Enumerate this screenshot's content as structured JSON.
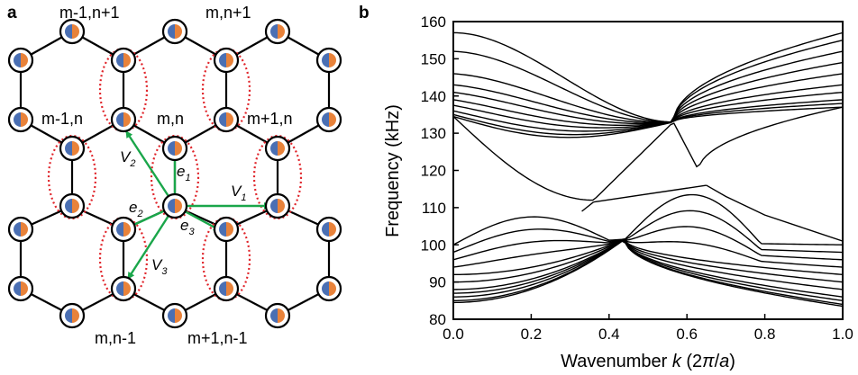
{
  "panel_a": {
    "label": "a",
    "site_labels": {
      "top_left": "m-1,n+1",
      "top_right": "m,n+1",
      "mid_left": "m-1,n",
      "mid_center": "m,n",
      "mid_right": "m+1,n",
      "bottom_left": "m,n-1",
      "bottom_right": "m+1,n-1"
    },
    "vectors": {
      "v1": {
        "base": "V",
        "sub": "1"
      },
      "v2": {
        "base": "V",
        "sub": "2"
      },
      "v3": {
        "base": "V",
        "sub": "3"
      },
      "e1": {
        "base": "e",
        "sub": "1"
      },
      "e2": {
        "base": "e",
        "sub": "2"
      },
      "e3": {
        "base": "e",
        "sub": "3"
      }
    },
    "colors": {
      "arrow": "#1aa64a",
      "unit_cell_outline": "#e0242a",
      "node_left": "#4a6fb3",
      "node_right": "#e8823a"
    }
  },
  "panel_b": {
    "label": "b",
    "ylabel": "Frequency (kHz)",
    "xlabel": {
      "pre": "Wavenumber ",
      "k": "k",
      "mid": " (2",
      "pi": "π",
      "slash": "/",
      "a": "a",
      "post": ")"
    }
  },
  "chart_data": {
    "type": "line",
    "title": "",
    "xlabel": "Wavenumber k (2π/a)",
    "ylabel": "Frequency (kHz)",
    "xlim": [
      0.0,
      1.0
    ],
    "ylim": [
      80,
      160
    ],
    "xticks": [
      "0.0",
      "0.2",
      "0.4",
      "0.6",
      "0.8",
      "1.0"
    ],
    "yticks": [
      "80",
      "90",
      "100",
      "110",
      "120",
      "130",
      "140",
      "150",
      "160"
    ],
    "grid": false,
    "upper_band_crossing": {
      "k": 0.565,
      "f": 133.0
    },
    "lower_band_crossing": {
      "k": 0.44,
      "f": 101.5
    },
    "edge_state": {
      "k": [
        0.36,
        0.65
      ],
      "f": [
        111.5,
        116.0
      ]
    },
    "upper_bands_at_k0": [
      157,
      152,
      146,
      143,
      141,
      139,
      137.5,
      136,
      135,
      134.5
    ],
    "upper_bands_at_k1": [
      157,
      155,
      152,
      149,
      146,
      143,
      141,
      139,
      138,
      137
    ],
    "upper_bands_min": {
      "k": 0.63,
      "f": 120
    },
    "lower_bands_at_k0": [
      100,
      98,
      96,
      94,
      92,
      90,
      88,
      87,
      86,
      85,
      84.5
    ],
    "lower_bands_at_k1": [
      100,
      98,
      96,
      94,
      92,
      90,
      88,
      86,
      85,
      84,
      83.5
    ],
    "lower_bands_max": {
      "k": 0.33,
      "f": 109
    }
  }
}
